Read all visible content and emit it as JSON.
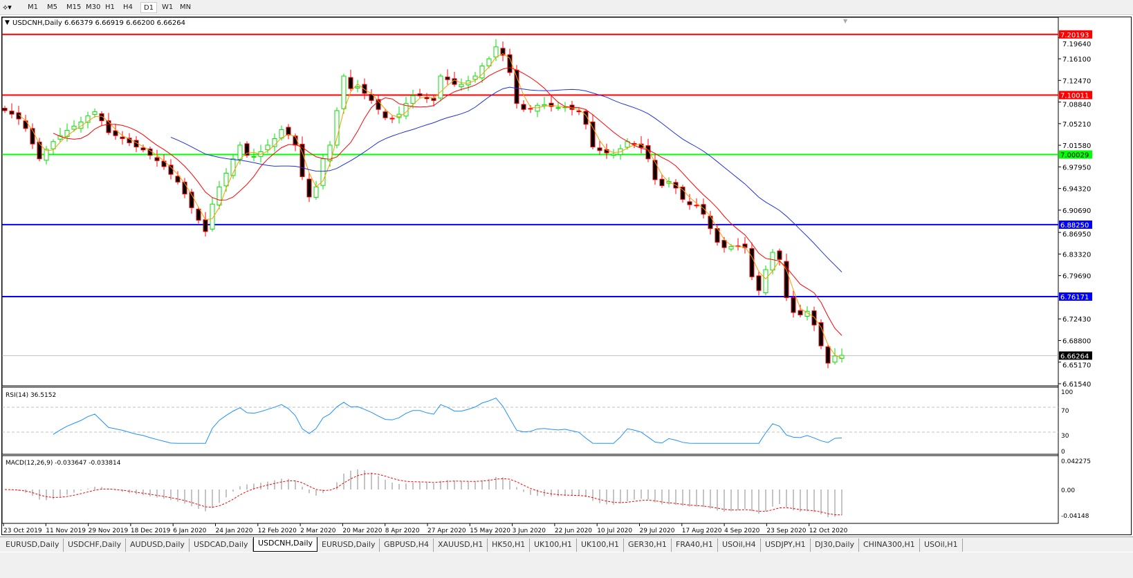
{
  "toolbar": {
    "timeframes": [
      "M1",
      "M5",
      "M15",
      "M30",
      "H1",
      "H4",
      "D1",
      "W1",
      "MN"
    ],
    "active": "D1"
  },
  "chart": {
    "header": "USDCNH,Daily  6.66379 6.66919 6.66200 6.66264",
    "price_ticks": [
      "7.19640",
      "7.16100",
      "7.12470",
      "7.08840",
      "7.05210",
      "7.01580",
      "6.97950",
      "6.94320",
      "6.90690",
      "6.86950",
      "6.83320",
      "6.79690",
      "6.72430",
      "6.68800",
      "6.65170",
      "6.61540"
    ],
    "hlines": [
      {
        "price": 7.20193,
        "label": "7.20193",
        "color": "#ff0000"
      },
      {
        "price": 7.10011,
        "label": "7.10011",
        "color": "#ff0000"
      },
      {
        "price": 7.00029,
        "label": "7.00029",
        "color": "#00ff00"
      },
      {
        "price": 6.8825,
        "label": "6.88250",
        "color": "#0000ff"
      },
      {
        "price": 6.76171,
        "label": "6.76171",
        "color": "#0000ff"
      }
    ],
    "current": {
      "price": 6.66264,
      "label": "6.66264"
    },
    "colors": {
      "bull": "#00e000",
      "bear": "#ff0000",
      "ma_fast": "#ff9900",
      "ma_mid": "#ff0000",
      "ma_slow": "#2030e0",
      "rsi": "#1e90ff",
      "macd_signal": "#ff0000",
      "macd_hist": "#b0b0b0"
    }
  },
  "chart_data": {
    "type": "candlestick",
    "ylim": [
      6.6131,
      7.2156
    ],
    "closes": [
      7.074,
      7.068,
      7.06,
      7.044,
      7.018,
      6.993,
      7.009,
      7.022,
      7.032,
      7.041,
      7.048,
      7.055,
      7.065,
      7.072,
      7.057,
      7.037,
      7.032,
      7.027,
      7.02,
      7.013,
      7.008,
      6.999,
      6.99,
      6.98,
      6.967,
      6.954,
      6.934,
      6.911,
      6.89,
      6.871,
      6.917,
      6.946,
      6.969,
      6.993,
      7.016,
      6.999,
      6.997,
      7.005,
      7.016,
      7.027,
      7.042,
      7.033,
      7.016,
      6.963,
      6.929,
      6.946,
      6.993,
      7.016,
      7.074,
      7.132,
      7.111,
      7.114,
      7.103,
      7.091,
      7.076,
      7.062,
      7.06,
      7.068,
      7.086,
      7.099,
      7.099,
      7.094,
      7.091,
      7.132,
      7.126,
      7.118,
      7.118,
      7.124,
      7.132,
      7.149,
      7.161,
      7.181,
      7.167,
      7.138,
      7.086,
      7.076,
      7.077,
      7.083,
      7.084,
      7.081,
      7.079,
      7.08,
      7.076,
      7.072,
      7.051,
      7.013,
      7.007,
      7.003,
      7.001,
      7.01,
      7.022,
      7.018,
      7.012,
      6.993,
      6.958,
      6.948,
      6.955,
      6.944,
      6.925,
      6.916,
      6.914,
      6.9,
      6.876,
      6.853,
      6.844,
      6.846,
      6.846,
      6.844,
      6.795,
      6.772,
      6.807,
      6.836,
      6.824,
      6.76,
      6.735,
      6.731,
      6.737,
      6.714,
      6.679,
      6.65,
      6.662,
      6.663
    ],
    "date_labels": [
      "23 Oct 2019",
      "11 Nov 2019",
      "29 Nov 2019",
      "18 Dec 2019",
      "6 Jan 2020",
      "24 Jan 2020",
      "12 Feb 2020",
      "2 Mar 2020",
      "20 Mar 2020",
      "8 Apr 2020",
      "27 Apr 2020",
      "15 May 2020",
      "3 Jun 2020",
      "22 Jun 2020",
      "10 Jul 2020",
      "29 Jul 2020",
      "17 Aug 2020",
      "4 Sep 2020",
      "23 Sep 2020",
      "12 Oct 2020"
    ]
  },
  "rsi": {
    "label": "RSI(14) 36.5152",
    "ticks": [
      "100",
      "70",
      "30",
      "0"
    ],
    "levels": [
      70,
      30
    ]
  },
  "macd": {
    "label": "MACD(12,26,9) -0.033647 -0.033814",
    "ticks": [
      "0.042275",
      "0.00",
      "-0.04148"
    ]
  },
  "tabs": [
    "EURUSD,Daily",
    "USDCHF,Daily",
    "AUDUSD,Daily",
    "USDCAD,Daily",
    "USDCNH,Daily",
    "EURUSD,Daily",
    "GBPUSD,H4",
    "XAUUSD,H1",
    "HK50,H1",
    "UK100,H1",
    "UK100,H1",
    "GER30,H1",
    "FRA40,H1",
    "USOil,H4",
    "USDJPY,H1",
    "DJ30,Daily",
    "CHINA300,H1",
    "USOil,H1"
  ],
  "active_tab": 4
}
